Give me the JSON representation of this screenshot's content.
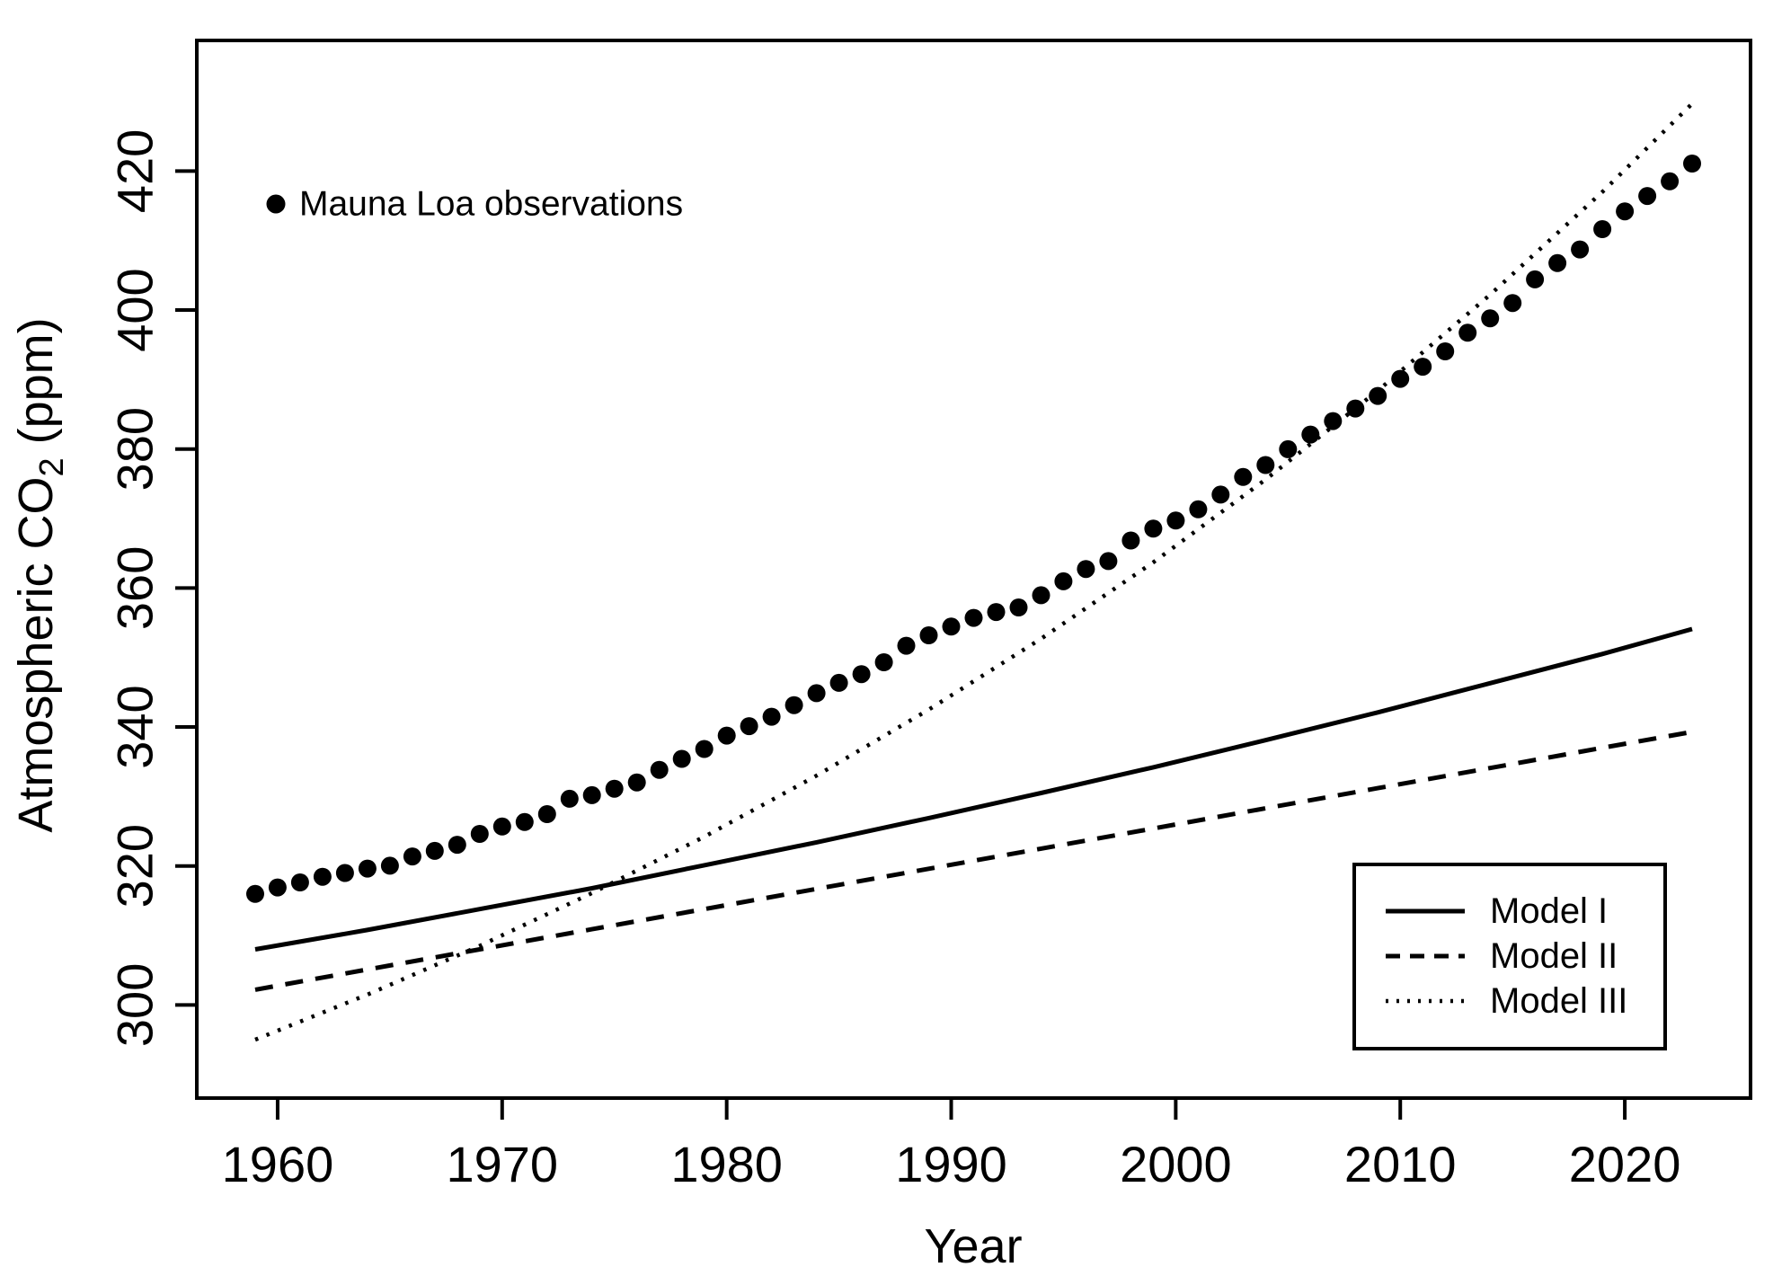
{
  "chart_data": {
    "type": "scatter",
    "title": "",
    "xlabel": "Year",
    "ylabel": "Atmospheric CO2 (ppm)",
    "ylabel_parts": {
      "pre": "Atmospheric CO",
      "sub": "2",
      "post": " (ppm)"
    },
    "xlim": [
      1956.4,
      2025.6
    ],
    "ylim": [
      286.6,
      438.8
    ],
    "x_ticks": [
      1960,
      1970,
      1980,
      1990,
      2000,
      2010,
      2020
    ],
    "y_ticks": [
      300,
      320,
      340,
      360,
      380,
      400,
      420
    ],
    "grid": false,
    "colors": {
      "foreground": "#000000",
      "background": "#ffffff"
    },
    "observations": {
      "label": "Mauna Loa observations",
      "marker": "filled-circle",
      "years": [
        1959,
        1960,
        1961,
        1962,
        1963,
        1964,
        1965,
        1966,
        1967,
        1968,
        1969,
        1970,
        1971,
        1972,
        1973,
        1974,
        1975,
        1976,
        1977,
        1978,
        1979,
        1980,
        1981,
        1982,
        1983,
        1984,
        1985,
        1986,
        1987,
        1988,
        1989,
        1990,
        1991,
        1992,
        1993,
        1994,
        1995,
        1996,
        1997,
        1998,
        1999,
        2000,
        2001,
        2002,
        2003,
        2004,
        2005,
        2006,
        2007,
        2008,
        2009,
        2010,
        2011,
        2012,
        2013,
        2014,
        2015,
        2016,
        2017,
        2018,
        2019,
        2020,
        2021,
        2022,
        2023
      ],
      "values": [
        315.98,
        316.91,
        317.64,
        318.45,
        318.99,
        319.62,
        320.04,
        321.37,
        322.18,
        323.05,
        324.62,
        325.68,
        326.32,
        327.46,
        329.68,
        330.19,
        331.12,
        332.03,
        333.84,
        335.41,
        336.84,
        338.76,
        340.12,
        341.48,
        343.15,
        344.87,
        346.35,
        347.61,
        349.31,
        351.69,
        353.2,
        354.45,
        355.7,
        356.54,
        357.21,
        358.96,
        360.97,
        362.74,
        363.88,
        366.84,
        368.54,
        369.71,
        371.32,
        373.45,
        375.98,
        377.7,
        379.98,
        382.09,
        384.02,
        385.83,
        387.64,
        390.1,
        391.85,
        394.06,
        396.74,
        398.81,
        401.01,
        404.41,
        406.76,
        408.72,
        411.65,
        414.21,
        416.41,
        418.53,
        421.08
      ]
    },
    "series": [
      {
        "name": "Model I",
        "style": "solid",
        "shape": "quadratic",
        "x": [
          1959,
          1964,
          1969,
          1974,
          1979,
          1984,
          1989,
          1994,
          1999,
          2004,
          2009,
          2014,
          2019,
          2023
        ],
        "values": [
          308.0,
          310.8,
          313.8,
          316.8,
          320.1,
          323.4,
          326.9,
          330.5,
          334.2,
          338.1,
          342.1,
          346.3,
          350.5,
          354.1
        ]
      },
      {
        "name": "Model II",
        "style": "dashed",
        "shape": "linear",
        "x": [
          1959,
          1964,
          1969,
          1974,
          1979,
          1984,
          1989,
          1994,
          1999,
          2004,
          2009,
          2014,
          2019,
          2023
        ],
        "values": [
          302.2,
          305.1,
          308.0,
          310.9,
          313.8,
          316.7,
          319.6,
          322.5,
          325.4,
          328.3,
          331.2,
          334.1,
          337.0,
          339.3
        ]
      },
      {
        "name": "Model III",
        "style": "dotted",
        "shape": "exponential",
        "x": [
          1959,
          1964,
          1969,
          1974,
          1979,
          1984,
          1989,
          1994,
          1999,
          2004,
          2009,
          2014,
          2019,
          2023
        ],
        "values": [
          295.0,
          301.5,
          308.5,
          316.1,
          324.2,
          333.0,
          342.5,
          352.7,
          363.7,
          375.6,
          388.4,
          402.2,
          417.0,
          429.7
        ]
      }
    ],
    "legend": {
      "position": "bottom-right",
      "entries": [
        "Model I",
        "Model II",
        "Model III"
      ]
    }
  }
}
